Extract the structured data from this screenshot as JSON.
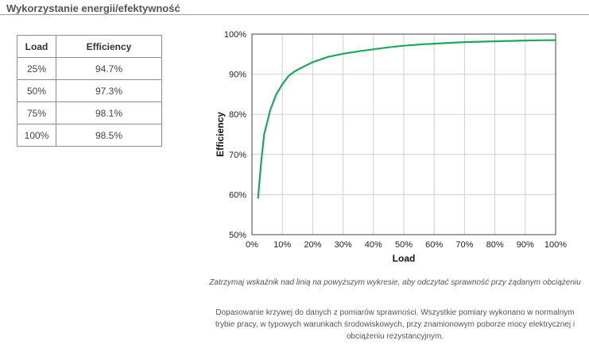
{
  "header": {
    "title": "Wykorzystanie energii/efektywność"
  },
  "table": {
    "columns": [
      "Load",
      "Efficiency"
    ],
    "rows": [
      [
        "25%",
        "94.7%"
      ],
      [
        "50%",
        "97.3%"
      ],
      [
        "75%",
        "98.1%"
      ],
      [
        "100%",
        "98.5%"
      ]
    ]
  },
  "chart_data": {
    "type": "line",
    "xlabel": "Load",
    "ylabel": "Efficiency",
    "xlim": [
      0,
      100
    ],
    "ylim": [
      50,
      100
    ],
    "x_ticks": [
      "0%",
      "10%",
      "20%",
      "30%",
      "40%",
      "50%",
      "60%",
      "70%",
      "80%",
      "90%",
      "100%"
    ],
    "y_ticks": [
      "50%",
      "60%",
      "70%",
      "80%",
      "90%",
      "100%"
    ],
    "grid": true,
    "line_color": "#1aa85a",
    "series": [
      {
        "x": [
          2,
          3,
          4,
          5,
          6,
          8,
          10,
          12,
          14,
          16,
          20,
          25,
          30,
          35,
          40,
          45,
          50,
          55,
          60,
          65,
          70,
          75,
          80,
          85,
          90,
          95,
          100
        ],
        "y": [
          59,
          68,
          75,
          78,
          81,
          85,
          87.5,
          89.5,
          90.7,
          91.5,
          93,
          94.3,
          95.1,
          95.7,
          96.2,
          96.7,
          97.1,
          97.4,
          97.6,
          97.8,
          98,
          98.1,
          98.2,
          98.3,
          98.4,
          98.45,
          98.5
        ]
      }
    ]
  },
  "footer": {
    "hint": "Zatrzymaj wskaźnik nad linią na powyższym wykresie, aby odczytać sprawność przy żądanym obciążeniu",
    "note": "Dopasowanie krzywej do danych z pomiarów sprawności. Wszystkie pomiary wykonano w normalnym trybie pracy, w typowych warunkach środowiskowych, przy znamionowym poborze mocy elektrycznej i obciążeniu rezystancyjnym."
  }
}
